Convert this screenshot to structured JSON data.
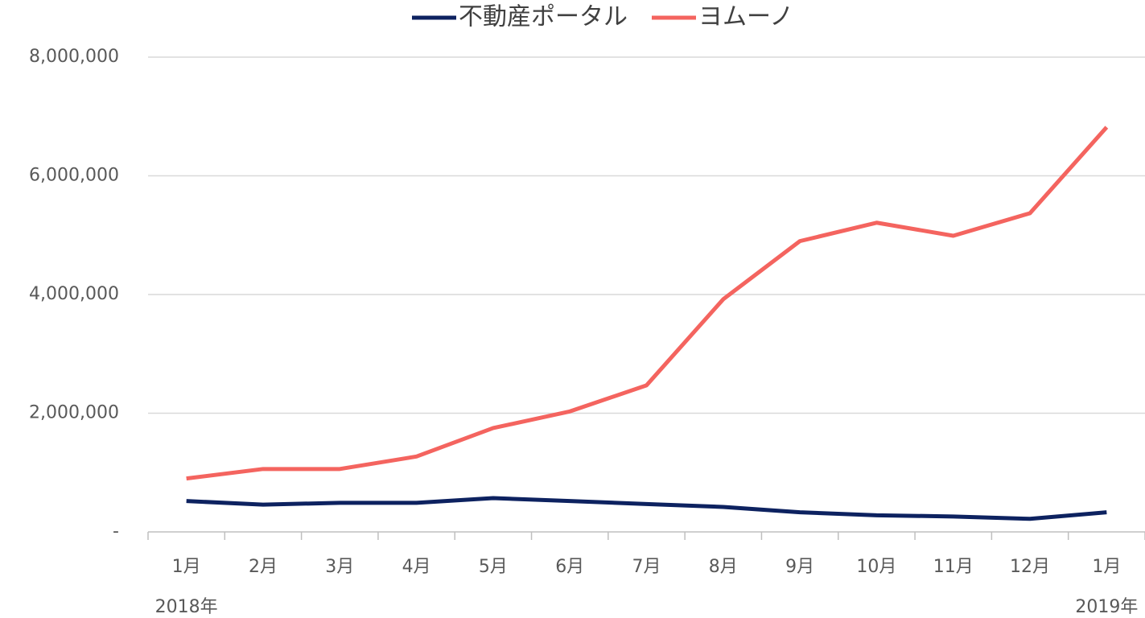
{
  "chart_data": {
    "type": "line",
    "categories": [
      "1月",
      "2月",
      "3月",
      "4月",
      "5月",
      "6月",
      "7月",
      "8月",
      "9月",
      "10月",
      "11月",
      "12月",
      "1月"
    ],
    "x_group_labels": [
      "2018年",
      "2019年"
    ],
    "series": [
      {
        "name": "不動産ポータル",
        "color": "#0d2260",
        "values": [
          520000,
          460000,
          490000,
          490000,
          570000,
          520000,
          470000,
          420000,
          330000,
          280000,
          260000,
          220000,
          330000
        ]
      },
      {
        "name": "ヨムーノ",
        "color": "#f4645f",
        "values": [
          900000,
          1060000,
          1060000,
          1270000,
          1750000,
          2030000,
          2470000,
          3920000,
          4900000,
          5210000,
          4990000,
          5370000,
          6820000
        ]
      }
    ],
    "ylim": [
      0,
      8000000
    ],
    "yticks": [
      {
        "value": 0,
        "label": "-"
      },
      {
        "value": 2000000,
        "label": "2,000,000"
      },
      {
        "value": 4000000,
        "label": "4,000,000"
      },
      {
        "value": 6000000,
        "label": "6,000,000"
      },
      {
        "value": 8000000,
        "label": "8,000,000"
      }
    ],
    "grid": true,
    "legend": "top"
  }
}
